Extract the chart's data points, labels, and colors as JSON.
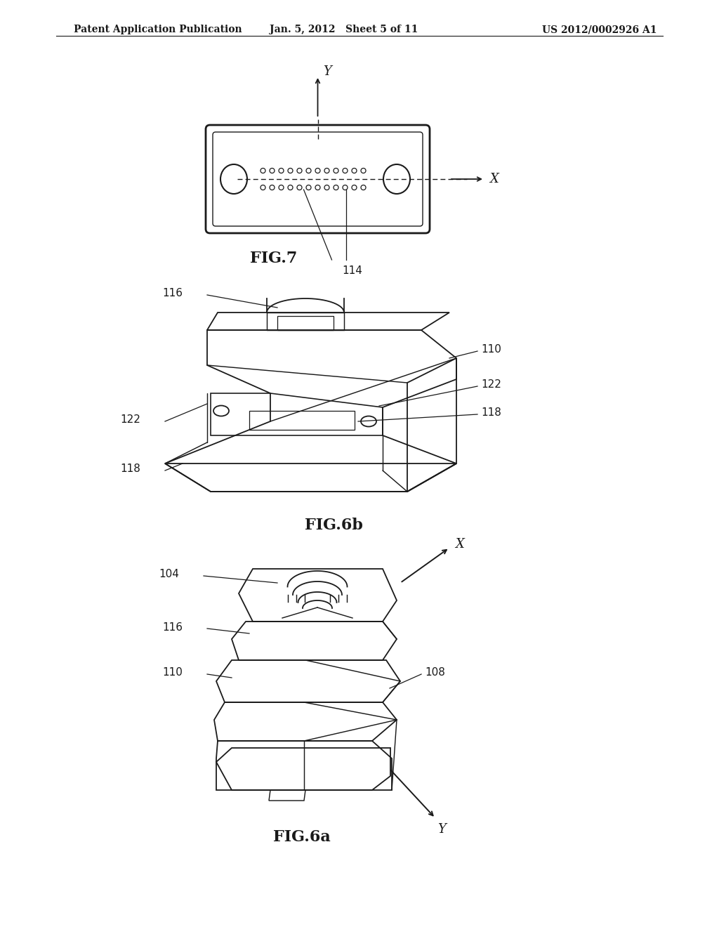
{
  "header_left": "Patent Application Publication",
  "header_mid": "Jan. 5, 2012   Sheet 5 of 11",
  "header_right": "US 2012/0002926 A1",
  "fig6a_label": "FIG.6a",
  "fig6b_label": "FIG.6b",
  "fig7_label": "FIG.7",
  "bg_color": "#ffffff",
  "line_color": "#1a1a1a"
}
